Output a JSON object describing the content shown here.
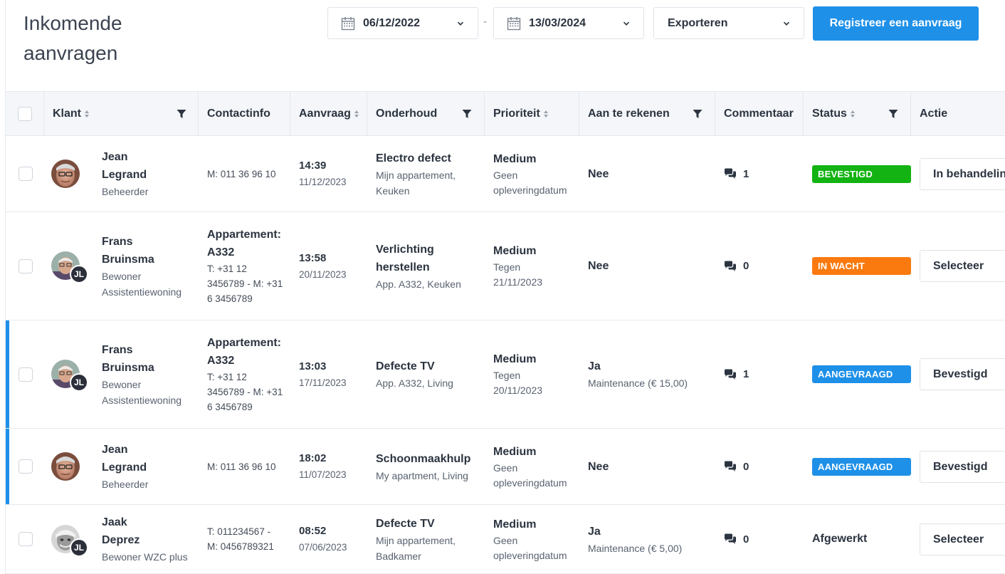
{
  "header": {
    "title_line1": "Inkomende",
    "title_line2": "aanvragen",
    "date_from": "06/12/2022",
    "date_to": "13/03/2024",
    "date_separator": "-",
    "export_label": "Exporteren",
    "register_label": "Registreer een aanvraag"
  },
  "colors": {
    "primary": "#1e90e8",
    "status_bevestigd": "#12b312",
    "status_in_wacht": "#fa7a0f",
    "status_aangevraagd": "#1e90e8"
  },
  "columns": {
    "klant": "Klant",
    "contactinfo": "Contactinfo",
    "aanvraag": "Aanvraag",
    "onderhoud": "Onderhoud",
    "prioriteit": "Prioriteit",
    "aan_te_rekenen": "Aan te rekenen",
    "commentaar": "Commentaar",
    "status": "Status",
    "actie": "Actie"
  },
  "rows": [
    {
      "first_name": "Jean",
      "last_name": "Legrand",
      "role_1": "Beheerder",
      "role_2": "",
      "avatar_badge": "",
      "contact_title_1": "",
      "contact_title_2": "",
      "contact_1": "M: 011 36 96 10",
      "contact_2": "",
      "contact_3": "",
      "time": "14:39",
      "date": "11/12/2023",
      "maint_1": "Electro defect",
      "maint_2": "",
      "maint_sub_1": "Mijn appartement,",
      "maint_sub_2": "Keuken",
      "prio": "Medium",
      "prio_sub_1": "Geen",
      "prio_sub_2": "opleveringdatum",
      "charge": "Nee",
      "charge_sub": "",
      "comments": "1",
      "status": "BEVESTIGD",
      "status_kind": "badge",
      "status_color": "#12b312",
      "action": "In behandeling",
      "accent": false
    },
    {
      "first_name": "Frans",
      "last_name": "Bruinsma",
      "role_1": "Bewoner",
      "role_2": "Assistentiewoning",
      "avatar_badge": "JL",
      "contact_title_1": "Appartement:",
      "contact_title_2": "A332",
      "contact_1": "T: +31 12",
      "contact_2": "3456789 - M: +31",
      "contact_3": "6 3456789",
      "time": "13:58",
      "date": "20/11/2023",
      "maint_1": "Verlichting",
      "maint_2": "herstellen",
      "maint_sub_1": "App. A332, Keuken",
      "maint_sub_2": "",
      "prio": "Medium",
      "prio_sub_1": "Tegen",
      "prio_sub_2": "21/11/2023",
      "charge": "Nee",
      "charge_sub": "",
      "comments": "0",
      "status": "IN WACHT",
      "status_kind": "badge",
      "status_color": "#fa7a0f",
      "action": "Selecteer",
      "accent": false
    },
    {
      "first_name": "Frans",
      "last_name": "Bruinsma",
      "role_1": "Bewoner",
      "role_2": "Assistentiewoning",
      "avatar_badge": "JL",
      "contact_title_1": "Appartement:",
      "contact_title_2": "A332",
      "contact_1": "T: +31 12",
      "contact_2": "3456789 - M: +31",
      "contact_3": "6 3456789",
      "time": "13:03",
      "date": "17/11/2023",
      "maint_1": "Defecte TV",
      "maint_2": "",
      "maint_sub_1": "App. A332, Living",
      "maint_sub_2": "",
      "prio": "Medium",
      "prio_sub_1": "Tegen",
      "prio_sub_2": "20/11/2023",
      "charge": "Ja",
      "charge_sub": "Maintenance (€ 15,00)",
      "comments": "1",
      "status": "AANGEVRAAGD",
      "status_kind": "badge",
      "status_color": "#1e90e8",
      "action": "Bevestigd",
      "accent": true
    },
    {
      "first_name": "Jean",
      "last_name": "Legrand",
      "role_1": "Beheerder",
      "role_2": "",
      "avatar_badge": "",
      "contact_title_1": "",
      "contact_title_2": "",
      "contact_1": "M: 011 36 96 10",
      "contact_2": "",
      "contact_3": "",
      "time": "18:02",
      "date": "11/07/2023",
      "maint_1": "Schoonmaakhulp",
      "maint_2": "",
      "maint_sub_1": "My apartment, Living",
      "maint_sub_2": "",
      "prio": "Medium",
      "prio_sub_1": "Geen",
      "prio_sub_2": "opleveringdatum",
      "charge": "Nee",
      "charge_sub": "",
      "comments": "0",
      "status": "AANGEVRAAGD",
      "status_kind": "badge",
      "status_color": "#1e90e8",
      "action": "Bevestigd",
      "accent": true
    },
    {
      "first_name": "Jaak",
      "last_name": "Deprez",
      "role_1": "Bewoner WZC plus",
      "role_2": "",
      "avatar_badge": "JL",
      "contact_title_1": "",
      "contact_title_2": "",
      "contact_1": "T: 011234567 -",
      "contact_2": "M: 0456789321",
      "contact_3": "",
      "time": "08:52",
      "date": "07/06/2023",
      "maint_1": "Defecte TV",
      "maint_2": "",
      "maint_sub_1": "Mijn appartement,",
      "maint_sub_2": "Badkamer",
      "prio": "Medium",
      "prio_sub_1": "Geen",
      "prio_sub_2": "opleveringdatum",
      "charge": "Ja",
      "charge_sub": "Maintenance (€ 5,00)",
      "comments": "0",
      "status": "Afgewerkt",
      "status_kind": "text",
      "status_color": "",
      "action": "Selecteer",
      "accent": false
    }
  ]
}
